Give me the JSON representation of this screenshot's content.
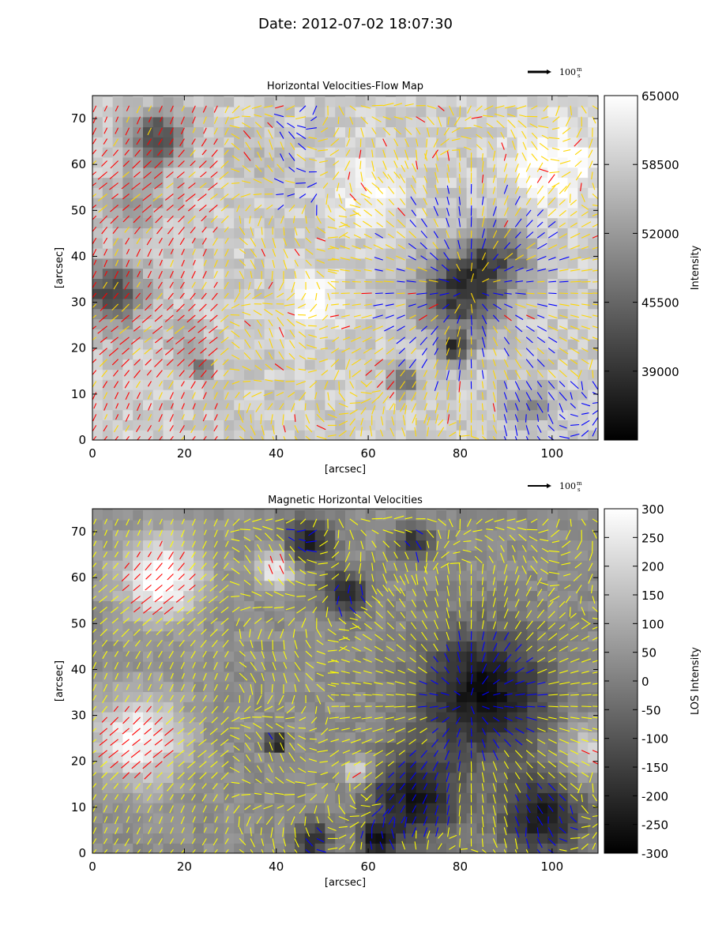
{
  "suptitle": "Date: 2012-07-02 18:07:30",
  "chart_data": [
    {
      "type": "quiver",
      "title": "Horizontal Velocities-Flow Map",
      "xlabel": "[arcsec]",
      "ylabel": "[arcsec]",
      "xlim": [
        0,
        110
      ],
      "ylim": [
        0,
        75
      ],
      "xticks": [
        0,
        20,
        40,
        60,
        80,
        100
      ],
      "yticks": [
        0,
        10,
        20,
        30,
        40,
        50,
        60,
        70
      ],
      "grid": false,
      "background": "intensity map (grayscale)",
      "arrow_colors": {
        "positive": "#ff0000",
        "negative": "#0000ff",
        "neutral": "#ffd700"
      },
      "reference_arrow": {
        "label": "100",
        "unit": "m",
        "per": "s"
      },
      "colorbar": {
        "label": "Intensity",
        "range": [
          32500,
          65000
        ],
        "ticks": [
          65000,
          58500,
          52000,
          45500,
          39000
        ],
        "cmap": "gray"
      }
    },
    {
      "type": "quiver",
      "title": "Magnetic Horizontal Velocities",
      "xlabel": "[arcsec]",
      "ylabel": "[arcsec]",
      "xlim": [
        0,
        110
      ],
      "ylim": [
        0,
        75
      ],
      "xticks": [
        0,
        20,
        40,
        60,
        80,
        100
      ],
      "yticks": [
        0,
        10,
        20,
        30,
        40,
        50,
        60,
        70
      ],
      "grid": false,
      "background": "LOS magnetogram (grayscale)",
      "arrow_colors": {
        "positive": "#ff0000",
        "negative": "#0000ff",
        "neutral": "#ffff00"
      },
      "reference_arrow": {
        "label": "100",
        "unit": "m",
        "per": "s"
      },
      "colorbar": {
        "label": "LOS Intensity",
        "range": [
          -300,
          300
        ],
        "ticks": [
          300,
          250,
          200,
          150,
          100,
          50,
          0,
          -50,
          -100,
          -150,
          -200,
          -250,
          -300
        ],
        "cmap": "gray"
      }
    }
  ]
}
